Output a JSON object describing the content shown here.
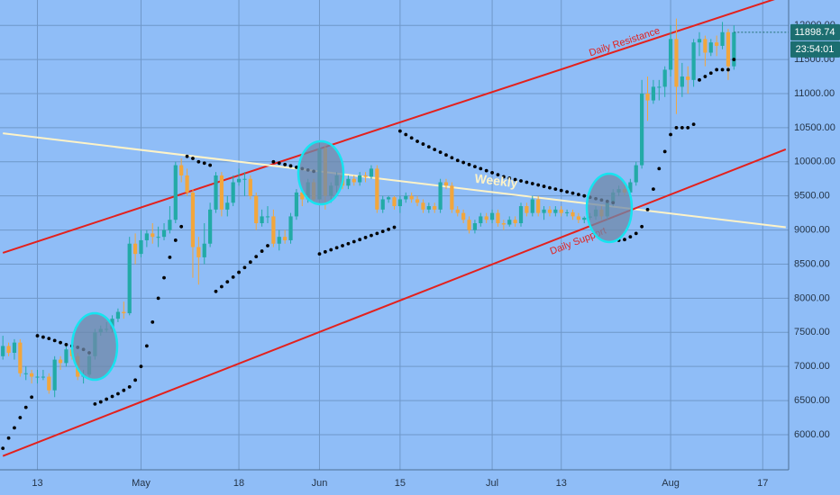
{
  "chart_data": {
    "type": "candlestick",
    "up_color": "#22aaa6",
    "down_color": "#f2a63c",
    "grid": true,
    "xlim": [
      "Apr 7",
      "Aug 21"
    ],
    "ylim": [
      5485,
      12372
    ],
    "xticks": [
      {
        "value": "Apr 13",
        "label": "13"
      },
      {
        "value": "May 1",
        "label": "May"
      },
      {
        "value": "May 18",
        "label": "18"
      },
      {
        "value": "Jun 1",
        "label": "Jun"
      },
      {
        "value": "Jun 15",
        "label": "15"
      },
      {
        "value": "Jul 1",
        "label": "Jul"
      },
      {
        "value": "Jul 13",
        "label": "13"
      },
      {
        "value": "Aug 1",
        "label": "Aug"
      },
      {
        "value": "Aug 17",
        "label": "17"
      }
    ],
    "yticks": [
      {
        "value": 6000,
        "label": "6000.00"
      },
      {
        "value": 6500,
        "label": "6500.00"
      },
      {
        "value": 7000,
        "label": "7000.00"
      },
      {
        "value": 7500,
        "label": "7500.00"
      },
      {
        "value": 8000,
        "label": "8000.00"
      },
      {
        "value": 8500,
        "label": "8500.00"
      },
      {
        "value": 9000,
        "label": "9000.00"
      },
      {
        "value": 9500,
        "label": "9500.00"
      },
      {
        "value": 10000,
        "label": "10000.00"
      },
      {
        "value": 10500,
        "label": "10500.00"
      },
      {
        "value": 11000,
        "label": "11000.00"
      },
      {
        "value": 11500,
        "label": "11500.00"
      },
      {
        "value": 12000,
        "label": "12000.00"
      }
    ],
    "dates": [
      "Apr 7",
      "Apr 8",
      "Apr 9",
      "Apr 10",
      "Apr 11",
      "Apr 12",
      "Apr 13",
      "Apr 14",
      "Apr 15",
      "Apr 16",
      "Apr 17",
      "Apr 18",
      "Apr 19",
      "Apr 20",
      "Apr 21",
      "Apr 22",
      "Apr 23",
      "Apr 24",
      "Apr 25",
      "Apr 26",
      "Apr 27",
      "Apr 28",
      "Apr 29",
      "Apr 30",
      "May 1",
      "May 2",
      "May 3",
      "May 4",
      "May 5",
      "May 6",
      "May 7",
      "May 8",
      "May 9",
      "May 10",
      "May 11",
      "May 12",
      "May 13",
      "May 14",
      "May 15",
      "May 16",
      "May 17",
      "May 18",
      "May 19",
      "May 20",
      "May 21",
      "May 22",
      "May 23",
      "May 24",
      "May 25",
      "May 26",
      "May 27",
      "May 28",
      "May 29",
      "May 30",
      "May 31",
      "Jun 1",
      "Jun 2",
      "Jun 3",
      "Jun 4",
      "Jun 5",
      "Jun 6",
      "Jun 7",
      "Jun 8",
      "Jun 9",
      "Jun 10",
      "Jun 11",
      "Jun 12",
      "Jun 13",
      "Jun 14",
      "Jun 15",
      "Jun 16",
      "Jun 17",
      "Jun 18",
      "Jun 19",
      "Jun 20",
      "Jun 21",
      "Jun 22",
      "Jun 23",
      "Jun 24",
      "Jun 25",
      "Jun 26",
      "Jun 27",
      "Jun 28",
      "Jun 29",
      "Jun 30",
      "Jul 1",
      "Jul 2",
      "Jul 3",
      "Jul 4",
      "Jul 5",
      "Jul 6",
      "Jul 7",
      "Jul 8",
      "Jul 9",
      "Jul 10",
      "Jul 11",
      "Jul 12",
      "Jul 13",
      "Jul 14",
      "Jul 15",
      "Jul 16",
      "Jul 17",
      "Jul 18",
      "Jul 19",
      "Jul 20",
      "Jul 21",
      "Jul 22",
      "Jul 23",
      "Jul 24",
      "Jul 25",
      "Jul 26",
      "Jul 27",
      "Jul 28",
      "Jul 29",
      "Jul 30",
      "Jul 31",
      "Aug 1",
      "Aug 2",
      "Aug 3",
      "Aug 4",
      "Aug 5",
      "Aug 6",
      "Aug 7",
      "Aug 8",
      "Aug 9",
      "Aug 10",
      "Aug 11",
      "Aug 12"
    ],
    "ohlc": [
      [
        7150,
        7450,
        7100,
        7300
      ],
      [
        7300,
        7350,
        7150,
        7200
      ],
      [
        7200,
        7400,
        7100,
        7350
      ],
      [
        7350,
        7400,
        6850,
        6900
      ],
      [
        6900,
        7000,
        6800,
        6900
      ],
      [
        6900,
        6950,
        6750,
        6850
      ],
      [
        6850,
        6950,
        6750,
        6850
      ],
      [
        6850,
        6950,
        6800,
        6850
      ],
      [
        6850,
        6900,
        6600,
        6650
      ],
      [
        6650,
        7150,
        6550,
        7100
      ],
      [
        7100,
        7150,
        6950,
        7050
      ],
      [
        7050,
        7300,
        7000,
        7250
      ],
      [
        7250,
        7300,
        7100,
        7150
      ],
      [
        7150,
        7200,
        6800,
        6850
      ],
      [
        6850,
        6950,
        6750,
        6880
      ],
      [
        6880,
        7200,
        6850,
        7150
      ],
      [
        7150,
        7550,
        7100,
        7500
      ],
      [
        7500,
        7600,
        7450,
        7550
      ],
      [
        7550,
        7650,
        7500,
        7550
      ],
      [
        7550,
        7750,
        7500,
        7700
      ],
      [
        7700,
        7850,
        7650,
        7800
      ],
      [
        7800,
        7950,
        7700,
        7780
      ],
      [
        7780,
        8900,
        7750,
        8800
      ],
      [
        8800,
        8950,
        8500,
        8650
      ],
      [
        8650,
        9000,
        8600,
        8850
      ],
      [
        8850,
        9000,
        8750,
        8950
      ],
      [
        8950,
        9100,
        8800,
        8900
      ],
      [
        8900,
        9050,
        8750,
        8900
      ],
      [
        8900,
        9100,
        8850,
        9000
      ],
      [
        9000,
        9350,
        8950,
        9150
      ],
      [
        9150,
        10000,
        9100,
        9950
      ],
      [
        9950,
        10050,
        9700,
        9800
      ],
      [
        9800,
        9900,
        9500,
        9550
      ],
      [
        9550,
        9600,
        8300,
        8750
      ],
      [
        8750,
        8900,
        8200,
        8600
      ],
      [
        8600,
        9100,
        8500,
        8800
      ],
      [
        8800,
        9400,
        8750,
        9300
      ],
      [
        9300,
        9850,
        9250,
        9800
      ],
      [
        9800,
        9850,
        9200,
        9300
      ],
      [
        9300,
        9500,
        9200,
        9400
      ],
      [
        9400,
        9800,
        9350,
        9700
      ],
      [
        9700,
        9900,
        9650,
        9750
      ],
      [
        9750,
        9850,
        9500,
        9750
      ],
      [
        9750,
        9800,
        9450,
        9500
      ],
      [
        9500,
        9550,
        9000,
        9100
      ],
      [
        9100,
        9300,
        9050,
        9200
      ],
      [
        9200,
        9350,
        9100,
        9200
      ],
      [
        9200,
        9300,
        8750,
        8800
      ],
      [
        8800,
        9000,
        8700,
        8900
      ],
      [
        8900,
        9000,
        8800,
        8850
      ],
      [
        8850,
        9250,
        8800,
        9200
      ],
      [
        9200,
        9600,
        9150,
        9550
      ],
      [
        9550,
        9600,
        9350,
        9450
      ],
      [
        9450,
        9750,
        9400,
        9700
      ],
      [
        9700,
        9750,
        9400,
        9450
      ],
      [
        9450,
        10300,
        9450,
        10200
      ],
      [
        10200,
        10250,
        9300,
        9500
      ],
      [
        9500,
        9700,
        9400,
        9650
      ],
      [
        9650,
        9850,
        9550,
        9800
      ],
      [
        9800,
        9850,
        9600,
        9650
      ],
      [
        9650,
        9800,
        9600,
        9750
      ],
      [
        9750,
        9800,
        9650,
        9700
      ],
      [
        9700,
        9850,
        9650,
        9800
      ],
      [
        9800,
        9850,
        9700,
        9780
      ],
      [
        9780,
        9950,
        9750,
        9900
      ],
      [
        9900,
        9950,
        9250,
        9300
      ],
      [
        9300,
        9500,
        9250,
        9450
      ],
      [
        9450,
        9500,
        9400,
        9480
      ],
      [
        9480,
        9500,
        9300,
        9350
      ],
      [
        9350,
        9500,
        9250,
        9450
      ],
      [
        9450,
        9550,
        9400,
        9500
      ],
      [
        9500,
        9550,
        9400,
        9450
      ],
      [
        9450,
        9500,
        9350,
        9400
      ],
      [
        9400,
        9450,
        9250,
        9300
      ],
      [
        9300,
        9400,
        9250,
        9350
      ],
      [
        9350,
        9400,
        9250,
        9300
      ],
      [
        9300,
        9750,
        9250,
        9700
      ],
      [
        9700,
        9750,
        9600,
        9650
      ],
      [
        9650,
        9700,
        9250,
        9300
      ],
      [
        9300,
        9350,
        9200,
        9250
      ],
      [
        9250,
        9300,
        9100,
        9150
      ],
      [
        9150,
        9200,
        8950,
        9000
      ],
      [
        9000,
        9150,
        8950,
        9100
      ],
      [
        9100,
        9250,
        9050,
        9200
      ],
      [
        9200,
        9250,
        9100,
        9150
      ],
      [
        9150,
        9300,
        9100,
        9250
      ],
      [
        9250,
        9300,
        9050,
        9100
      ],
      [
        9100,
        9150,
        9000,
        9080
      ],
      [
        9080,
        9200,
        9050,
        9150
      ],
      [
        9150,
        9200,
        9050,
        9100
      ],
      [
        9100,
        9400,
        9050,
        9350
      ],
      [
        9350,
        9400,
        9200,
        9250
      ],
      [
        9250,
        9500,
        9200,
        9450
      ],
      [
        9450,
        9500,
        9200,
        9250
      ],
      [
        9250,
        9350,
        9150,
        9300
      ],
      [
        9300,
        9350,
        9200,
        9250
      ],
      [
        9250,
        9350,
        9200,
        9300
      ],
      [
        9300,
        9350,
        9200,
        9250
      ],
      [
        9250,
        9300,
        9200,
        9260
      ],
      [
        9260,
        9300,
        9150,
        9200
      ],
      [
        9200,
        9250,
        9100,
        9150
      ],
      [
        9150,
        9200,
        9100,
        9180
      ],
      [
        9180,
        9250,
        9150,
        9200
      ],
      [
        9200,
        9350,
        9150,
        9300
      ],
      [
        9300,
        9350,
        9150,
        9200
      ],
      [
        9200,
        9450,
        9150,
        9400
      ],
      [
        9400,
        9600,
        9350,
        9550
      ],
      [
        9550,
        9650,
        9500,
        9600
      ],
      [
        9600,
        9700,
        9500,
        9550
      ],
      [
        9550,
        9750,
        9500,
        9700
      ],
      [
        9700,
        10000,
        9650,
        9950
      ],
      [
        9950,
        11200,
        9900,
        11000
      ],
      [
        11000,
        11250,
        10600,
        10900
      ],
      [
        10900,
        11200,
        10850,
        11100
      ],
      [
        11100,
        11200,
        10900,
        11100
      ],
      [
        11100,
        11400,
        10950,
        11350
      ],
      [
        11350,
        12000,
        11250,
        11800
      ],
      [
        11800,
        12100,
        10700,
        11100
      ],
      [
        11100,
        11450,
        10950,
        11250
      ],
      [
        11250,
        11400,
        11000,
        11200
      ],
      [
        11200,
        11800,
        11100,
        11750
      ],
      [
        11750,
        11900,
        11550,
        11800
      ],
      [
        11800,
        11850,
        11400,
        11600
      ],
      [
        11600,
        11800,
        11550,
        11750
      ],
      [
        11750,
        11850,
        11550,
        11700
      ],
      [
        11700,
        12050,
        11650,
        11900
      ],
      [
        11900,
        11950,
        11200,
        11400
      ],
      [
        11400,
        12000,
        11350,
        11898.74
      ]
    ],
    "sar": {
      "color": "#000000",
      "values": [
        5800,
        5950,
        6100,
        6250,
        6400,
        6550,
        7450,
        7430,
        7410,
        7380,
        7350,
        7320,
        7300,
        7280,
        7250,
        7200,
        6450,
        6480,
        6520,
        6560,
        6600,
        6650,
        6700,
        6800,
        7000,
        7300,
        7650,
        8000,
        8300,
        8600,
        8850,
        9050,
        10080,
        10050,
        10000,
        9980,
        9950,
        8100,
        8170,
        8240,
        8310,
        8380,
        8450,
        8530,
        8610,
        8690,
        8770,
        10000,
        9980,
        9960,
        9940,
        9920,
        9900,
        9880,
        9860,
        8650,
        8680,
        8710,
        8740,
        8770,
        8800,
        8830,
        8860,
        8890,
        8920,
        8950,
        8980,
        9010,
        9040,
        10450,
        10400,
        10350,
        10300,
        10260,
        10220,
        10180,
        10140,
        10100,
        10060,
        10020,
        9990,
        9960,
        9930,
        9900,
        9870,
        9840,
        9810,
        9780,
        9760,
        9740,
        9720,
        9700,
        9680,
        9660,
        9640,
        9620,
        9600,
        9580,
        9560,
        9540,
        9520,
        9500,
        9480,
        9460,
        9440,
        9420,
        9400,
        8850,
        8860,
        8900,
        8950,
        9050,
        9300,
        9600,
        9900,
        10150,
        10400,
        10500,
        10500,
        10500,
        10550,
        11200,
        11250,
        11300,
        11350,
        11350,
        11350,
        11500
      ]
    },
    "lines": [
      {
        "label": "Daily Resistance",
        "color": "#e3211d",
        "points": [
          [
            "Apr 7",
            8665
          ],
          [
            "Aug 20",
            12410
          ]
        ]
      },
      {
        "label": "Weekly",
        "color": "#fdf3c8",
        "points": [
          [
            "Apr 7",
            10417
          ],
          [
            "Aug 21",
            9040
          ]
        ]
      },
      {
        "label": "Daily Support",
        "color": "#e3211d",
        "points": [
          [
            "Apr 7",
            5687
          ],
          [
            "Aug 21",
            10182
          ]
        ]
      }
    ],
    "last_price": 11898.74,
    "countdown": "23:54:01",
    "price_box_color": "#1c6e70"
  }
}
